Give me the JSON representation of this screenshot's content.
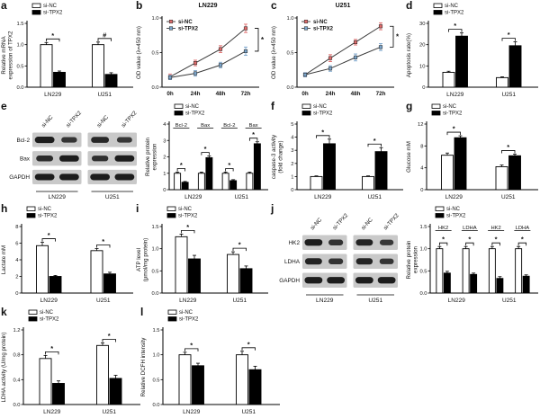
{
  "figure": {
    "letters": [
      "a",
      "b",
      "c",
      "d",
      "e",
      "f",
      "g",
      "h",
      "i",
      "j",
      "k",
      "l"
    ]
  },
  "colors": {
    "si_nc_bar": "#ffffff",
    "si_tpx2_bar": "#000000",
    "si_nc_line": "#e06c6c",
    "si_tpx2_line": "#7ca6cc",
    "axis": "#000000",
    "blot_bg": "#c9c9c9",
    "blot_band": "#1d1d1d"
  },
  "chart_data": [
    {
      "type": "bar",
      "ylabel": "Relative mRNA\nexpression of TPX2",
      "ylim": [
        0,
        1.5
      ],
      "yticks": [
        0,
        0.5,
        1,
        1.5
      ],
      "ytick_labels": [
        "0.0",
        "0.5",
        "1.0",
        "1.5"
      ],
      "groups": [
        "LN229",
        "U251"
      ],
      "mleft": 30,
      "series": [
        {
          "name": "si-NC",
          "fill": "#ffffff",
          "values": [
            1.0,
            1.0
          ],
          "errors": [
            0.05,
            0.06
          ]
        },
        {
          "name": "si-TPX2",
          "fill": "#000000",
          "values": [
            0.35,
            0.3
          ],
          "errors": [
            0.03,
            0.04
          ]
        }
      ],
      "sig": [
        "*",
        "#"
      ]
    },
    {
      "type": "line",
      "title": "LN229",
      "ylabel": "OD value (λ=450 nm)",
      "ylim": [
        0,
        1.0
      ],
      "yticks": [
        0,
        0.5,
        1
      ],
      "ytick_labels": [
        "0.0",
        "0.5",
        "1.0"
      ],
      "x_labels": [
        "0h",
        "24h",
        "48h",
        "72h"
      ],
      "series": [
        {
          "name": "si-NC",
          "color": "#e06c6c",
          "values": [
            0.15,
            0.35,
            0.55,
            0.85
          ],
          "errors": [
            0.04,
            0.04,
            0.05,
            0.06
          ]
        },
        {
          "name": "si-TPX2",
          "color": "#7ca6cc",
          "values": [
            0.14,
            0.2,
            0.32,
            0.52
          ],
          "errors": [
            0.03,
            0.04,
            0.04,
            0.06
          ]
        }
      ],
      "sig": "*"
    },
    {
      "type": "line",
      "title": "U251",
      "ylabel": "OD value (λ=450 nm)",
      "ylim": [
        0,
        1.0
      ],
      "yticks": [
        0,
        0.5,
        1
      ],
      "ytick_labels": [
        "0.0",
        "0.5",
        "1.0"
      ],
      "x_labels": [
        "0h",
        "24h",
        "48h",
        "72h"
      ],
      "series": [
        {
          "name": "si-NC",
          "color": "#e06c6c",
          "values": [
            0.18,
            0.42,
            0.65,
            0.88
          ],
          "errors": [
            0.03,
            0.05,
            0.04,
            0.05
          ]
        },
        {
          "name": "si-TPX2",
          "color": "#7ca6cc",
          "values": [
            0.18,
            0.27,
            0.43,
            0.58
          ],
          "errors": [
            0.03,
            0.04,
            0.05,
            0.05
          ]
        }
      ],
      "sig": "*"
    },
    {
      "type": "bar",
      "ylabel": "Apoptosis rate(%)",
      "ylim": [
        0,
        30
      ],
      "yticks": [
        0,
        10,
        20,
        30
      ],
      "ytick_labels": [
        "0",
        "10",
        "20",
        "30"
      ],
      "groups": [
        "LN229",
        "U251"
      ],
      "mleft": 26,
      "series": [
        {
          "name": "si-NC",
          "fill": "#ffffff",
          "values": [
            7,
            4.5
          ],
          "errors": [
            0.5,
            0.4
          ]
        },
        {
          "name": "si-TPX2",
          "fill": "#000000",
          "values": [
            24,
            19.5
          ],
          "errors": [
            1.5,
            1.8
          ]
        }
      ],
      "sig": [
        "*",
        "*"
      ]
    },
    {
      "type": "blot",
      "rows": [
        "Bcl-2",
        "Bax",
        "GAPDH"
      ],
      "lanes": [
        "si-NC",
        "si-TPX2",
        "si-NC",
        "si-TPX2"
      ],
      "groups": [
        "LN229",
        "U251"
      ],
      "bands": [
        [
          1,
          0.55,
          0.8,
          0.5
        ],
        [
          0.7,
          1,
          0.65,
          1
        ],
        [
          1,
          1,
          1,
          1
        ]
      ]
    },
    {
      "type": "bar",
      "ylabel": "Relative protein\nexpression",
      "ylim": [
        0,
        4
      ],
      "yticks": [
        0,
        1,
        2,
        3,
        4
      ],
      "ytick_labels": [
        "0",
        "1",
        "2",
        "3",
        "4"
      ],
      "groups": [
        "LN229",
        "U251"
      ],
      "subgroups": [
        "Bcl-2",
        "Bax"
      ],
      "mleft": 28,
      "series": [
        {
          "name": "si-NC",
          "fill": "#ffffff",
          "values": [
            1,
            1,
            1,
            1
          ],
          "errors": [
            0.07,
            0.07,
            0.07,
            0.07
          ]
        },
        {
          "name": "si-TPX2",
          "fill": "#000000",
          "values": [
            0.45,
            1.95,
            0.55,
            2.8
          ],
          "errors": [
            0.05,
            0.1,
            0.06,
            0.12
          ]
        }
      ],
      "sig": [
        "*",
        "*",
        "*",
        "*"
      ]
    },
    {
      "type": "bar",
      "ylabel": "caspase-3 activity\n(fold change)",
      "ylim": [
        0,
        5
      ],
      "yticks": [
        0,
        1,
        2,
        3,
        4,
        5
      ],
      "ytick_labels": [
        "0",
        "1",
        "2",
        "3",
        "4",
        "5"
      ],
      "groups": [
        "LN229",
        "U251"
      ],
      "mleft": 30,
      "series": [
        {
          "name": "si-NC",
          "fill": "#ffffff",
          "values": [
            1.0,
            1.0
          ],
          "errors": [
            0.05,
            0.05
          ]
        },
        {
          "name": "si-TPX2",
          "fill": "#000000",
          "values": [
            3.5,
            2.9
          ],
          "errors": [
            0.35,
            0.3
          ]
        }
      ],
      "sig": [
        "*",
        "*"
      ]
    },
    {
      "type": "bar",
      "ylabel": "Glucose mM",
      "ylim": [
        0,
        12
      ],
      "yticks": [
        0,
        4,
        8,
        12
      ],
      "ytick_labels": [
        "0",
        "4",
        "8",
        "12"
      ],
      "groups": [
        "LN229",
        "U251"
      ],
      "mleft": 24,
      "series": [
        {
          "name": "si-NC",
          "fill": "#ffffff",
          "values": [
            6.3,
            4.2
          ],
          "errors": [
            0.4,
            0.3
          ]
        },
        {
          "name": "si-TPX2",
          "fill": "#000000",
          "values": [
            9.5,
            6.2
          ],
          "errors": [
            0.35,
            0.3
          ]
        }
      ],
      "sig": [
        "*",
        "*"
      ]
    },
    {
      "type": "bar",
      "ylabel": "Lactate mM",
      "ylim": [
        0,
        8
      ],
      "yticks": [
        0,
        2,
        4,
        6,
        8
      ],
      "ytick_labels": [
        "0",
        "2",
        "4",
        "6",
        "8"
      ],
      "groups": [
        "LN229",
        "U251"
      ],
      "mleft": 24,
      "series": [
        {
          "name": "si-NC",
          "fill": "#ffffff",
          "values": [
            5.7,
            5.1
          ],
          "errors": [
            0.4,
            0.25
          ]
        },
        {
          "name": "si-TPX2",
          "fill": "#000000",
          "values": [
            2.0,
            2.3
          ],
          "errors": [
            0.12,
            0.2
          ]
        }
      ],
      "sig": [
        "*",
        "*"
      ]
    },
    {
      "type": "bar",
      "ylabel": "ATP level\n(μmol/mg protein)",
      "ylim": [
        0,
        1.5
      ],
      "yticks": [
        0,
        0.5,
        1,
        1.5
      ],
      "ytick_labels": [
        "0.0",
        "0.5",
        "1.0",
        "1.5"
      ],
      "groups": [
        "LN229",
        "U251"
      ],
      "mleft": 30,
      "series": [
        {
          "name": "si-NC",
          "fill": "#ffffff",
          "values": [
            1.27,
            0.87
          ],
          "errors": [
            0.06,
            0.06
          ]
        },
        {
          "name": "si-TPX2",
          "fill": "#000000",
          "values": [
            0.77,
            0.55
          ],
          "errors": [
            0.08,
            0.06
          ]
        }
      ],
      "sig": [
        "*",
        "*"
      ]
    },
    {
      "type": "blot",
      "rows": [
        "HK2",
        "LDHA",
        "GAPDH"
      ],
      "lanes": [
        "si-NC",
        "si-TPX2",
        "si-NC",
        "si-TPX2"
      ],
      "groups": [
        "LN229",
        "U251"
      ],
      "bands": [
        [
          1,
          0.6,
          0.9,
          0.5
        ],
        [
          0.9,
          0.6,
          0.85,
          0.55
        ],
        [
          1,
          1,
          1,
          1
        ]
      ]
    },
    {
      "type": "bar",
      "ylabel": "Relative protein\nexpression",
      "ylim": [
        0,
        1.5
      ],
      "yticks": [
        0,
        0.5,
        1,
        1.5
      ],
      "ytick_labels": [
        "0.0",
        "0.5",
        "1.0",
        "1.5"
      ],
      "groups": [
        "LN229",
        "U251"
      ],
      "subgroups": [
        "HK2",
        "LDHA"
      ],
      "mleft": 28,
      "series": [
        {
          "name": "si-NC",
          "fill": "#ffffff",
          "values": [
            1,
            1,
            1,
            1
          ],
          "errors": [
            0.05,
            0.05,
            0.05,
            0.05
          ]
        },
        {
          "name": "si-TPX2",
          "fill": "#000000",
          "values": [
            0.45,
            0.42,
            0.33,
            0.38
          ],
          "errors": [
            0.04,
            0.03,
            0.04,
            0.03
          ]
        }
      ],
      "sig": [
        "*",
        "*",
        "*",
        "*"
      ]
    },
    {
      "type": "bar",
      "ylabel": "LDHA activity (U/mg protein)",
      "ylim": [
        0,
        1.2
      ],
      "yticks": [
        0,
        0.4,
        0.8,
        1.2
      ],
      "ytick_labels": [
        "0.0",
        "0.4",
        "0.8",
        "1.2"
      ],
      "groups": [
        "LN229",
        "U251"
      ],
      "mleft": 26,
      "series": [
        {
          "name": "si-NC",
          "fill": "#ffffff",
          "values": [
            0.74,
            0.95
          ],
          "errors": [
            0.05,
            0.04
          ]
        },
        {
          "name": "si-TPX2",
          "fill": "#000000",
          "values": [
            0.34,
            0.42
          ],
          "errors": [
            0.04,
            0.05
          ]
        }
      ],
      "sig": [
        "*",
        "*"
      ]
    },
    {
      "type": "bar",
      "ylabel": "Relative DCFH intensity",
      "ylim": [
        0,
        1.5
      ],
      "yticks": [
        0,
        0.5,
        1,
        1.5
      ],
      "ytick_labels": [
        "0.0",
        "0.5",
        "1.0",
        "1.5"
      ],
      "groups": [
        "LN229",
        "U251"
      ],
      "mleft": 26,
      "series": [
        {
          "name": "si-NC",
          "fill": "#ffffff",
          "values": [
            1.0,
            1.0
          ],
          "errors": [
            0.05,
            0.07
          ]
        },
        {
          "name": "si-TPX2",
          "fill": "#000000",
          "values": [
            0.78,
            0.7
          ],
          "errors": [
            0.05,
            0.07
          ]
        }
      ],
      "sig": [
        "*",
        "*"
      ]
    }
  ]
}
